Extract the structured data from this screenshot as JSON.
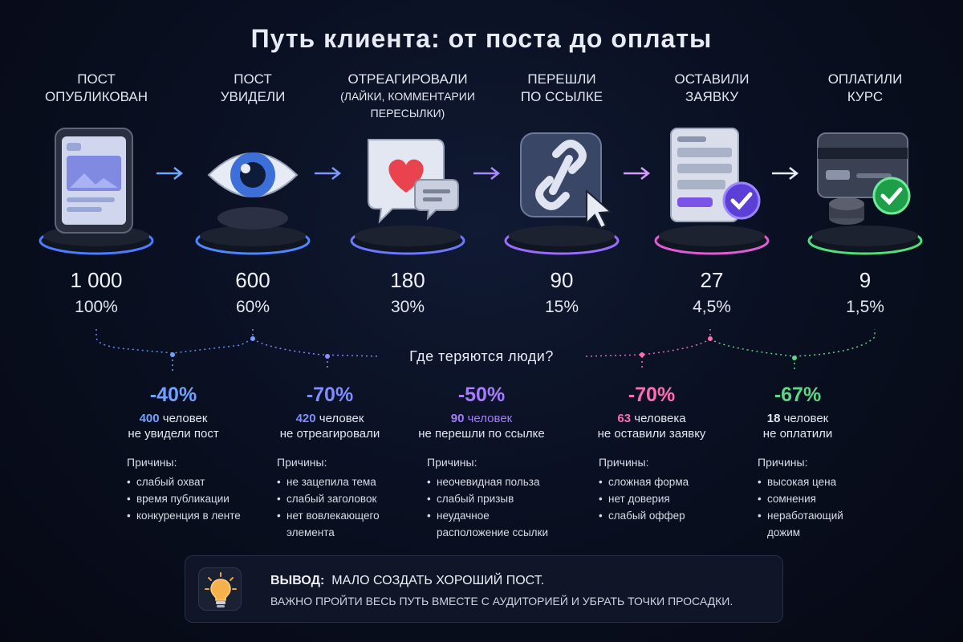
{
  "title": "Путь клиента: от поста до оплаты",
  "colors": {
    "blue": "#5aa0ff",
    "indigo": "#6e86ff",
    "violet": "#a070ff",
    "magenta": "#e064d8",
    "pink": "#ff5fa8",
    "green": "#52e07c"
  },
  "stages": [
    {
      "label_1": "Пост",
      "label_2": "опубликован",
      "sub": "",
      "count": "1 000",
      "pct": "100%",
      "icon": "phone-post-icon"
    },
    {
      "label_1": "Пост",
      "label_2": "увидели",
      "sub": "",
      "count": "600",
      "pct": "60%",
      "icon": "eye-icon"
    },
    {
      "label_1": "Отреагировали",
      "label_2": "(лайки, комментарии",
      "sub": "пересылки)",
      "count": "180",
      "pct": "30%",
      "icon": "heart-chat-icon"
    },
    {
      "label_1": "Перешли",
      "label_2": "по ссылке",
      "sub": "",
      "count": "90",
      "pct": "15%",
      "icon": "link-cursor-icon"
    },
    {
      "label_1": "Оставили",
      "label_2": "заявку",
      "sub": "",
      "count": "27",
      "pct": "4,5%",
      "icon": "form-check-icon"
    },
    {
      "label_1": "Оплатили",
      "label_2": "курс",
      "sub": "",
      "count": "9",
      "pct": "1,5%",
      "icon": "card-check-icon"
    }
  ],
  "question": "Где теряются люди?",
  "losses": [
    {
      "pct": "-40%",
      "num": "400",
      "line1_rest": " человек",
      "line2": "не увидели пост",
      "color": "#6fa2ff",
      "reasons_title": "Причины:",
      "reasons": [
        "слабый охват",
        "время публикации",
        "конкуренция в ленте"
      ]
    },
    {
      "pct": "-70%",
      "num": "420",
      "line1_rest": " человек",
      "line2": "не отреагировали",
      "color": "#7f8dff",
      "reasons_title": "Причины:",
      "reasons": [
        "не зацепила тема",
        "слабый заголовок",
        "нет вовлекающего элемента"
      ]
    },
    {
      "pct": "-50%",
      "num": "90",
      "line1_rest": " человек",
      "line2": "не перешли по ссылке",
      "color": "#a77bff",
      "reasons_title": "Причины:",
      "reasons": [
        "неочевидная польза",
        "слабый призыв",
        "неудачное расположение ссылки"
      ]
    },
    {
      "pct": "-70%",
      "num": "63",
      "line1_rest": " человека",
      "line2": "не оставили заявку",
      "color": "#ff6cb0",
      "reasons_title": "Причины:",
      "reasons": [
        "сложная форма",
        "нет доверия",
        "слабый оффер"
      ]
    },
    {
      "pct": "-67%",
      "num": "18",
      "line1_rest": " человек",
      "line2": "не оплатили",
      "color": "#5bd884",
      "reasons_title": "Причины:",
      "reasons": [
        "высокая цена",
        "сомнения",
        "неработающий дожим"
      ]
    }
  ],
  "conclusion": {
    "head": "Вывод:",
    "line1": "мало создать хороший пост.",
    "line2": "Важно пройти весь путь вместе с аудиторией и убрать точки просадки.",
    "icon": "lightbulb-icon"
  }
}
